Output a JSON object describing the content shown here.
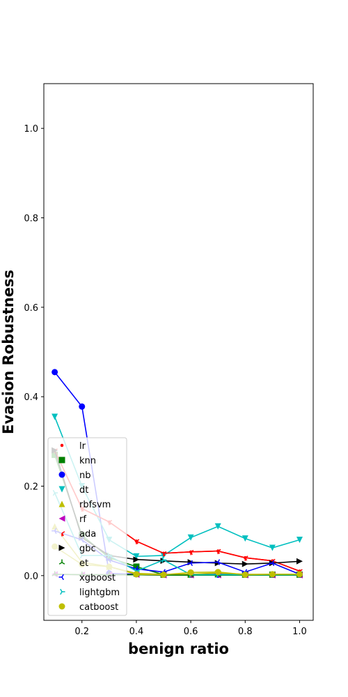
{
  "chart_data": {
    "type": "line",
    "xlabel": "benign ratio",
    "ylabel": "Evasion Robustness",
    "xlim": [
      0.06,
      1.05
    ],
    "ylim": [
      -0.1,
      1.1
    ],
    "xticks": [
      0.2,
      0.4,
      0.6,
      0.8,
      1.0
    ],
    "xtick_labels": [
      "0.2",
      "0.4",
      "0.6",
      "0.8",
      "1.0"
    ],
    "yticks": [
      0.0,
      0.2,
      0.4,
      0.6,
      0.8,
      1.0
    ],
    "ytick_labels": [
      "0.0",
      "0.2",
      "0.4",
      "0.6",
      "0.8",
      "1.0"
    ],
    "legend_position": "lower-left",
    "grid": false,
    "x": [
      0.1,
      0.2,
      0.3,
      0.4,
      0.5,
      0.6,
      0.7,
      0.8,
      0.9,
      1.0
    ],
    "series": [
      {
        "name": "lr",
        "color": "#ff0000",
        "marker": "point",
        "values": [
          0.28,
          0.15,
          0.12,
          0.077,
          0.05,
          0.053,
          0.055,
          0.04,
          0.033,
          0.01
        ]
      },
      {
        "name": "knn",
        "color": "#008000",
        "marker": "square",
        "values": [
          0.27,
          0.09,
          0.04,
          0.02,
          0.002,
          0.002,
          0.003,
          0.002,
          0.002,
          0.002
        ]
      },
      {
        "name": "nb",
        "color": "#0000ff",
        "marker": "circle",
        "values": [
          0.455,
          0.378,
          0.005,
          0.003,
          0.002,
          0.002,
          0.002,
          0.002,
          0.002,
          0.002
        ]
      },
      {
        "name": "dt",
        "color": "#00bfbf",
        "marker": "triangle-down",
        "values": [
          0.355,
          0.2,
          0.08,
          0.043,
          0.045,
          0.085,
          0.11,
          0.083,
          0.062,
          0.08
        ]
      },
      {
        "name": "rbfsvm",
        "color": "#bfbf00",
        "marker": "triangle-up",
        "values": [
          0.11,
          0.03,
          0.02,
          0.005,
          0.003,
          0.003,
          0.006,
          0.003,
          0.003,
          0.003
        ]
      },
      {
        "name": "rf",
        "color": "#bf00bf",
        "marker": "triangle-left",
        "values": [
          0.003,
          0.002,
          0.002,
          0.002,
          0.001,
          0.001,
          0.001,
          0.001,
          0.001,
          0.001
        ]
      },
      {
        "name": "ada",
        "color": "#ff0000",
        "marker": "tri-down",
        "values": [
          0.28,
          0.15,
          0.12,
          0.077,
          0.05,
          0.053,
          0.055,
          0.04,
          0.033,
          0.01
        ]
      },
      {
        "name": "gbc",
        "color": "#000000",
        "marker": "triangle-right",
        "values": [
          0.28,
          0.085,
          0.045,
          0.036,
          0.033,
          0.03,
          0.028,
          0.026,
          0.028,
          0.032
        ]
      },
      {
        "name": "et",
        "color": "#008000",
        "marker": "tri-up",
        "values": [
          0.003,
          0.002,
          0.002,
          0.002,
          0.001,
          0.001,
          0.001,
          0.001,
          0.001,
          0.001
        ]
      },
      {
        "name": "xgboost",
        "color": "#0000ff",
        "marker": "tri-left",
        "values": [
          0.1,
          0.08,
          0.035,
          0.015,
          0.008,
          0.028,
          0.03,
          0.008,
          0.028,
          0.003
        ]
      },
      {
        "name": "lightgbm",
        "color": "#00bfbf",
        "marker": "tri-right",
        "values": [
          0.185,
          0.045,
          0.045,
          0.01,
          0.035,
          0.002,
          0.002,
          0.002,
          0.002,
          0.002
        ]
      },
      {
        "name": "catboost",
        "color": "#bfbf00",
        "marker": "octagon",
        "values": [
          0.065,
          0.025,
          0.02,
          0.003,
          0.002,
          0.007,
          0.008,
          0.002,
          0.003,
          0.003
        ]
      }
    ]
  }
}
